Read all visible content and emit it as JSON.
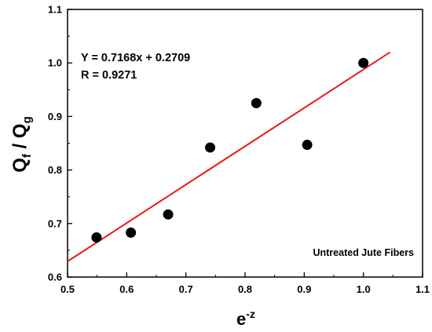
{
  "chart_data": {
    "type": "scatter",
    "xlabel": {
      "base": "e",
      "sup": "-z"
    },
    "ylabel": {
      "q1": "Q",
      "s1": "f",
      "slash": " / ",
      "q2": "Q",
      "s2": "g"
    },
    "xlim": [
      0.5,
      1.1
    ],
    "ylim": [
      0.6,
      1.1
    ],
    "x_ticks": [
      "0.5",
      "0.6",
      "0.7",
      "0.8",
      "0.9",
      "1.0",
      "1.1"
    ],
    "y_ticks": [
      "0.6",
      "0.7",
      "0.8",
      "0.9",
      "1.0",
      "1.1"
    ],
    "x_tick_values": [
      0.5,
      0.6,
      0.7,
      0.8,
      0.9,
      1.0,
      1.1
    ],
    "y_tick_values": [
      0.6,
      0.7,
      0.8,
      0.9,
      1.0,
      1.1
    ],
    "points": [
      {
        "x": 0.549,
        "y": 0.674
      },
      {
        "x": 0.607,
        "y": 0.683
      },
      {
        "x": 0.67,
        "y": 0.717
      },
      {
        "x": 0.741,
        "y": 0.842
      },
      {
        "x": 0.819,
        "y": 0.925
      },
      {
        "x": 0.905,
        "y": 0.847
      },
      {
        "x": 1.0,
        "y": 1.0
      }
    ],
    "fit": {
      "slope": 0.7168,
      "intercept": 0.2709,
      "x_range": [
        0.5,
        1.045
      ],
      "color": "#e31b1b"
    },
    "point_color": "#000000",
    "annotations": {
      "equation": "Y = 0.7168x + 0.2709",
      "r_value": "R = 0.9271",
      "sample_label": "Untreated Jute Fibers"
    },
    "grid": false
  }
}
